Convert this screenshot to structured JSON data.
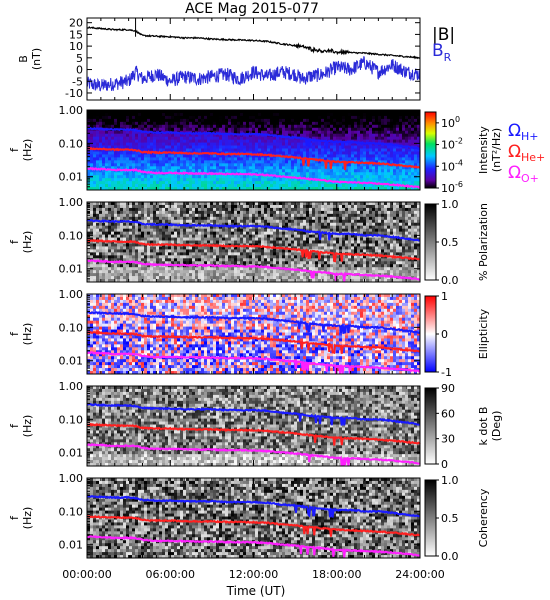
{
  "title": "ACE Mag 2015-077",
  "x_axis": {
    "label": "Time (UT)",
    "ticks": [
      "00:00:00",
      "06:00:00",
      "12:00:00",
      "18:00:00",
      "24:00:00"
    ],
    "range_hours": [
      0,
      24
    ]
  },
  "legend": {
    "B_total": {
      "text": "|B|",
      "color": "#000000"
    },
    "B_R": {
      "main": "B",
      "sub": "R",
      "color": "#2a2ad8"
    },
    "omega_h": {
      "main": "Ω",
      "sub": "H+",
      "color": "#1a1aff"
    },
    "omega_he": {
      "main": "Ω",
      "sub": "He+",
      "color": "#ff2020"
    },
    "omega_o": {
      "main": "Ω",
      "sub": "O+",
      "color": "#ff20ff"
    }
  },
  "panels": {
    "field": {
      "ylabel": "B",
      "ylabel_unit": "(nT)",
      "yticks": [
        "-10",
        "-5",
        "0",
        "5",
        "10",
        "15",
        "20"
      ]
    },
    "spec_yticks": [
      "0.01",
      "0.10",
      "1.00"
    ],
    "spec_ylabel": "f",
    "spec_ylabel_unit": "(Hz)",
    "intensity": {
      "cb_title": "Intensity",
      "cb_unit": "(nT²/Hz)",
      "cb_ticks": {
        "base": "10",
        "exps": [
          "-6",
          "-4",
          "-2",
          "0"
        ]
      }
    },
    "polarization": {
      "cb_title": "% Polarization",
      "cb_ticks": [
        "0.0",
        "0.5",
        "1.0"
      ]
    },
    "ellipticity": {
      "cb_title": "Ellipticity",
      "cb_ticks": [
        "-1",
        "0",
        "1"
      ]
    },
    "kdotb": {
      "cb_title": "k dot B",
      "cb_unit": "(Deg)",
      "cb_ticks": [
        "0",
        "30",
        "60",
        "90"
      ]
    },
    "coherency": {
      "cb_title": "Coherency",
      "cb_ticks": [
        "0.0",
        "0.5",
        "1.0"
      ]
    }
  },
  "chart_data": {
    "type": "line",
    "title": "ACE Mag 2015-077",
    "xlabel": "Time (UT)",
    "x_hours": [
      0,
      1,
      2,
      3,
      3.5,
      4,
      5,
      6,
      7,
      8,
      9,
      10,
      11,
      12,
      13,
      14,
      15,
      15.5,
      16,
      17,
      18,
      19,
      20,
      21,
      22,
      23,
      24
    ],
    "series": [
      {
        "name": "|B|",
        "unit": "nT",
        "values": [
          18,
          17.5,
          17,
          17,
          16.5,
          14.5,
          14.2,
          14,
          13.5,
          13.5,
          13,
          12.8,
          12.6,
          12.4,
          12,
          11,
          10.2,
          9.8,
          9,
          8,
          7.5,
          7.2,
          7,
          6.5,
          6,
          5.5,
          5
        ]
      },
      {
        "name": "B_R",
        "unit": "nT",
        "values": [
          -6,
          -7,
          -6,
          -5,
          -1,
          -4,
          -2,
          -5,
          -3,
          -4,
          -3,
          -2,
          -4,
          -1,
          -3,
          -1,
          -2,
          -4,
          -3,
          -2,
          1,
          0,
          3,
          -1,
          2,
          -1,
          -2
        ]
      },
      {
        "name": "Ω_H+",
        "unit": "Hz",
        "values": [
          0.28,
          0.27,
          0.26,
          0.26,
          0.25,
          0.22,
          0.21,
          0.21,
          0.2,
          0.2,
          0.2,
          0.19,
          0.19,
          0.19,
          0.18,
          0.16,
          0.15,
          0.14,
          0.13,
          0.12,
          0.11,
          0.11,
          0.1,
          0.1,
          0.09,
          0.08,
          0.07
        ]
      },
      {
        "name": "Ω_He+",
        "unit": "Hz",
        "values": [
          0.07,
          0.068,
          0.065,
          0.065,
          0.063,
          0.055,
          0.053,
          0.053,
          0.051,
          0.05,
          0.05,
          0.048,
          0.048,
          0.047,
          0.045,
          0.041,
          0.038,
          0.036,
          0.034,
          0.031,
          0.028,
          0.027,
          0.026,
          0.025,
          0.023,
          0.021,
          0.019
        ]
      },
      {
        "name": "Ω_O+",
        "unit": "Hz",
        "values": [
          0.0175,
          0.017,
          0.016,
          0.016,
          0.016,
          0.014,
          0.013,
          0.013,
          0.0128,
          0.0126,
          0.0124,
          0.012,
          0.012,
          0.0118,
          0.0112,
          0.0102,
          0.0095,
          0.009,
          0.0085,
          0.0078,
          0.007,
          0.0068,
          0.0065,
          0.0062,
          0.0058,
          0.0053,
          0.0048
        ]
      }
    ],
    "panels": [
      {
        "type": "line",
        "ylabel": "B (nT)",
        "ylim": [
          -13,
          22
        ],
        "series": [
          "|B|",
          "B_R"
        ]
      },
      {
        "type": "heatmap",
        "ylabel": "f (Hz)",
        "ylim": [
          0.004,
          1.0
        ],
        "yscale": "log",
        "colorbar": "Intensity (nT²/Hz)",
        "clim_log10": [
          -6,
          1
        ],
        "colors": "rainbow",
        "overlays": [
          "Ω_H+",
          "Ω_He+",
          "Ω_O+"
        ]
      },
      {
        "type": "heatmap",
        "ylabel": "f (Hz)",
        "ylim": [
          0.004,
          1.0
        ],
        "yscale": "log",
        "colorbar": "% Polarization",
        "clim": [
          0,
          1
        ],
        "colors": "grayscale",
        "overlays": [
          "Ω_H+",
          "Ω_He+",
          "Ω_O+"
        ]
      },
      {
        "type": "heatmap",
        "ylabel": "f (Hz)",
        "ylim": [
          0.004,
          1.0
        ],
        "yscale": "log",
        "colorbar": "Ellipticity",
        "clim": [
          -1,
          1
        ],
        "colors": "blue-white-red",
        "overlays": [
          "Ω_H+",
          "Ω_He+",
          "Ω_O+"
        ]
      },
      {
        "type": "heatmap",
        "ylabel": "f (Hz)",
        "ylim": [
          0.004,
          1.0
        ],
        "yscale": "log",
        "colorbar": "k dot B (Deg)",
        "clim": [
          0,
          90
        ],
        "colors": "grayscale",
        "overlays": [
          "Ω_H+",
          "Ω_He+",
          "Ω_O+"
        ]
      },
      {
        "type": "heatmap",
        "ylabel": "f (Hz)",
        "ylim": [
          0.004,
          1.0
        ],
        "yscale": "log",
        "colorbar": "Coherency",
        "clim": [
          0,
          1
        ],
        "colors": "grayscale",
        "overlays": [
          "Ω_H+",
          "Ω_He+",
          "Ω_O+"
        ]
      }
    ]
  }
}
